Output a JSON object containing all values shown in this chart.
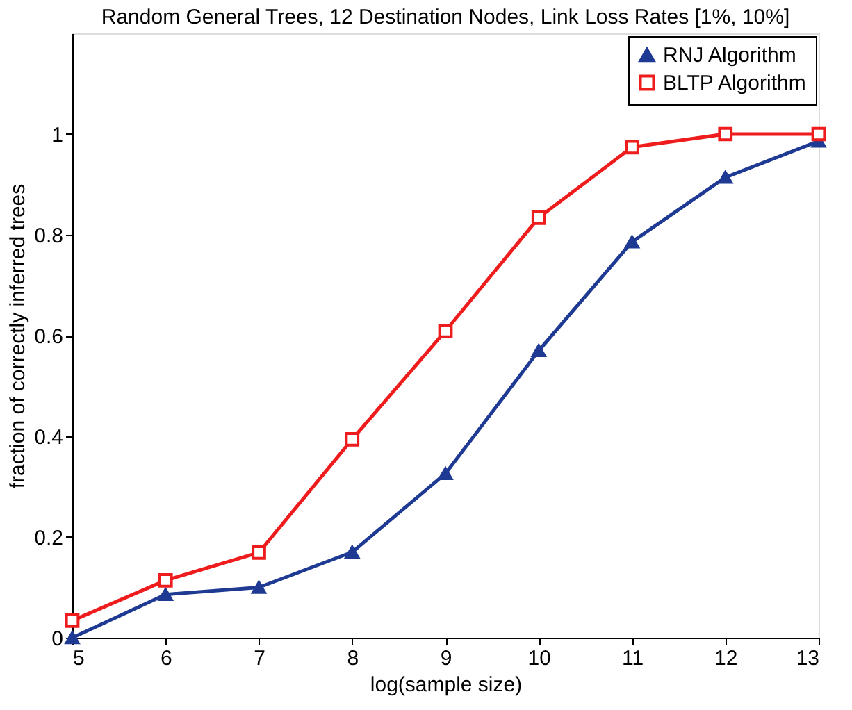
{
  "chart_data": {
    "type": "line",
    "title": "Random General Trees, 12 Destination Nodes, Link Loss Rates [1%, 10%]",
    "xlabel": "log(sample size)",
    "ylabel": "fraction of correctly inferred trees",
    "x": [
      5,
      6,
      7,
      8,
      9,
      10,
      11,
      12,
      13
    ],
    "series": [
      {
        "name": "RNJ Algorithm",
        "color": "#1f3a93",
        "marker": "triangle",
        "values": [
          0,
          0.086,
          0.1,
          0.17,
          0.326,
          0.57,
          0.786,
          0.914,
          0.986
        ]
      },
      {
        "name": "BLTP Algorithm",
        "color": "#ee1c1c",
        "marker": "square",
        "values": [
          0.034,
          0.114,
          0.169,
          0.394,
          0.609,
          0.834,
          0.974,
          1.0,
          1.0
        ]
      }
    ],
    "xlim": [
      5,
      13
    ],
    "xticks": [
      5,
      6,
      7,
      8,
      9,
      10,
      11,
      12,
      13
    ],
    "ylim": [
      0,
      1.2
    ],
    "yticks": [
      0,
      0.2,
      0.4,
      0.6,
      0.8,
      1
    ],
    "grid": false,
    "legend": "top right",
    "line_style": "solid"
  }
}
